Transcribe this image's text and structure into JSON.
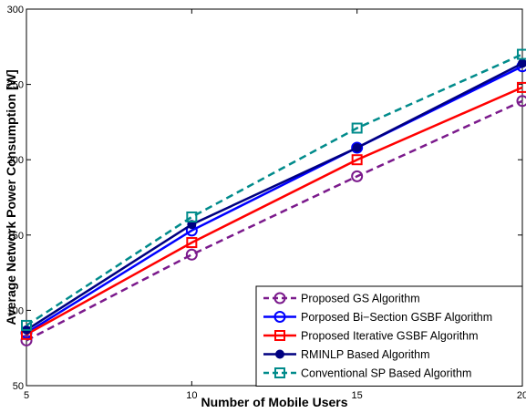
{
  "chart_data": {
    "type": "line",
    "xlabel": "Number of Mobile Users",
    "ylabel": "Average Network Power Consumption [W]",
    "xlim": [
      5,
      20
    ],
    "ylim": [
      50,
      300
    ],
    "xticks": [
      5,
      10,
      15,
      20
    ],
    "xtick_labels": [
      "5",
      "10",
      "15",
      "20"
    ],
    "yticks": [
      50,
      100,
      150,
      200,
      250,
      300
    ],
    "ytick_labels": [
      "50",
      "100",
      "150",
      "200",
      "250",
      "300"
    ],
    "grid": false,
    "legend_position": "bottom-right",
    "x": [
      5,
      10,
      15,
      20
    ],
    "series": [
      {
        "name": "Proposed GS Algorithm",
        "values": [
          80,
          137,
          189,
          239
        ],
        "color": "#7B1A8C",
        "dash": "8,5",
        "marker": "circle"
      },
      {
        "name": "Porposed Bi−Section GSBF Algorithm",
        "values": [
          85,
          153,
          208,
          262
        ],
        "color": "#0000FF",
        "dash": "",
        "marker": "circle"
      },
      {
        "name": "Proposed Iterative GSBF Algorithm",
        "values": [
          84,
          145,
          200,
          248
        ],
        "color": "#FF0000",
        "dash": "",
        "marker": "square"
      },
      {
        "name": "RMINLP Based Algorithm",
        "values": [
          87,
          157,
          208,
          264
        ],
        "color": "#000080",
        "dash": "",
        "marker": "dot"
      },
      {
        "name": "Conventional SP Based Algorithm",
        "values": [
          90,
          162,
          221,
          270
        ],
        "color": "#008B8B",
        "dash": "8,5",
        "marker": "square"
      }
    ]
  }
}
